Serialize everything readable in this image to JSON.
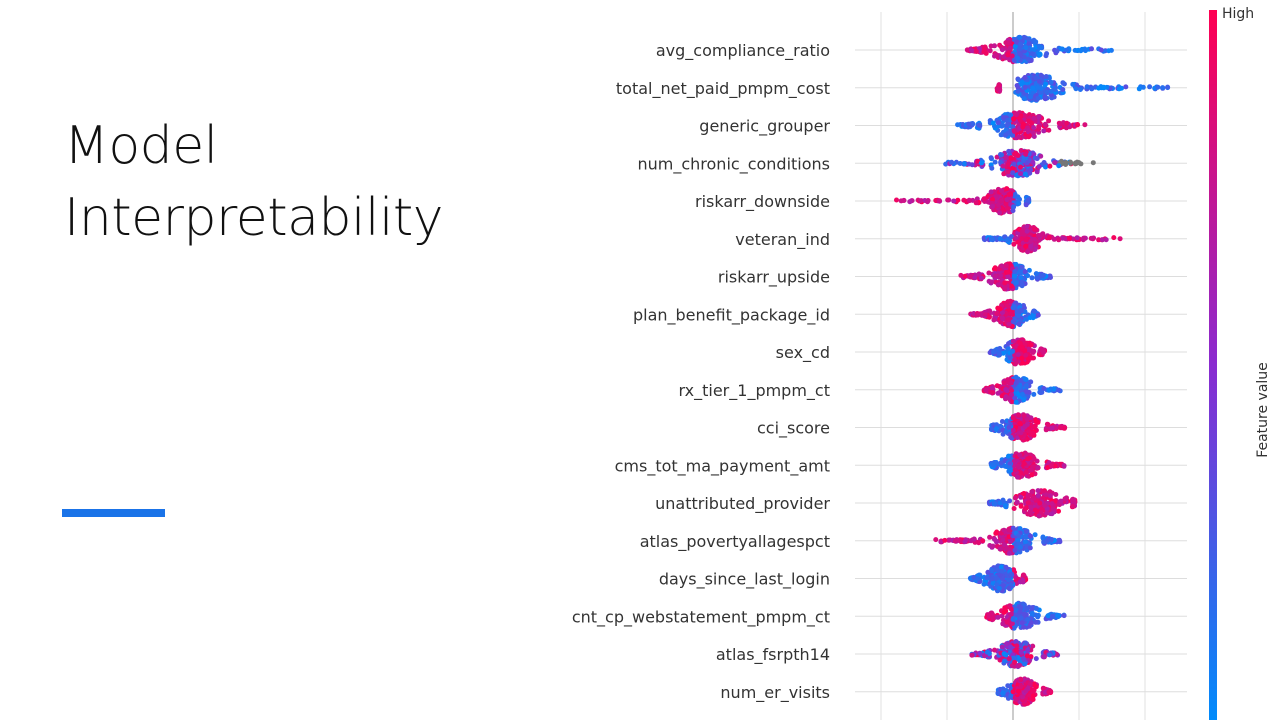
{
  "slide": {
    "title_line1": "Model",
    "title_line2": "Interpretability",
    "accent_color": "#1a73e8"
  },
  "chart_data": {
    "type": "scatter",
    "subtype": "shap-beeswarm-summary",
    "title": "",
    "xlabel": "",
    "ylabel": "",
    "zero_line": 0,
    "grid": true,
    "features": [
      {
        "name": "avg_compliance_ratio",
        "min": -0.7,
        "max": 1.6,
        "low_side": "right",
        "core": [
          -0.4,
          0.6
        ]
      },
      {
        "name": "total_net_paid_pmpm_cost",
        "min": -0.25,
        "max": 2.4,
        "low_side": "right",
        "core": [
          -0.2,
          0.9
        ]
      },
      {
        "name": "generic_grouper",
        "min": -0.85,
        "max": 1.15,
        "low_side": "left",
        "core": [
          -0.5,
          0.7
        ]
      },
      {
        "name": "num_chronic_conditions",
        "min": -1.05,
        "max": 1.3,
        "low_side": "mixed",
        "core": [
          -0.45,
          0.6
        ]
      },
      {
        "name": "riskarr_downside",
        "min": -2.05,
        "max": 0.25,
        "low_side": "right",
        "core": [
          -0.5,
          0.2
        ]
      },
      {
        "name": "veteran_ind",
        "min": -0.5,
        "max": 1.9,
        "low_side": "left",
        "core": [
          -0.05,
          0.5
        ]
      },
      {
        "name": "riskarr_upside",
        "min": -0.85,
        "max": 0.6,
        "low_side": "right",
        "core": [
          -0.45,
          0.35
        ]
      },
      {
        "name": "plan_benefit_package_id",
        "min": -0.65,
        "max": 0.4,
        "low_side": "right",
        "core": [
          -0.35,
          0.3
        ]
      },
      {
        "name": "sex_cd",
        "min": -0.35,
        "max": 0.5,
        "low_side": "left",
        "core": [
          -0.2,
          0.4
        ]
      },
      {
        "name": "rx_tier_1_pmpm_ct",
        "min": -0.45,
        "max": 0.75,
        "low_side": "right",
        "core": [
          -0.3,
          0.4
        ]
      },
      {
        "name": "cci_score",
        "min": -0.35,
        "max": 0.85,
        "low_side": "left",
        "core": [
          -0.25,
          0.5
        ]
      },
      {
        "name": "cms_tot_ma_payment_amt",
        "min": -0.35,
        "max": 0.85,
        "low_side": "left",
        "core": [
          -0.25,
          0.5
        ]
      },
      {
        "name": "unattributed_provider",
        "min": -0.4,
        "max": 0.95,
        "low_side": "left",
        "core": [
          -0.1,
          0.9
        ]
      },
      {
        "name": "atlas_povertyallagespct",
        "min": -1.3,
        "max": 0.75,
        "low_side": "right",
        "core": [
          -0.45,
          0.45
        ]
      },
      {
        "name": "days_since_last_login",
        "min": -0.65,
        "max": 0.2,
        "low_side": "left",
        "core": [
          -0.5,
          0.15
        ]
      },
      {
        "name": "cnt_cp_webstatement_pmpm_ct",
        "min": -0.4,
        "max": 0.85,
        "low_side": "right",
        "core": [
          -0.3,
          0.5
        ]
      },
      {
        "name": "atlas_fsrpth14",
        "min": -0.65,
        "max": 0.7,
        "low_side": "mixed",
        "core": [
          -0.35,
          0.45
        ]
      },
      {
        "name": "num_er_visits",
        "min": -0.25,
        "max": 0.6,
        "low_side": "left",
        "core": [
          -0.15,
          0.45
        ]
      },
      {
        "name": "",
        "min": -0.1,
        "max": 0.15,
        "low_side": "mixed",
        "core": [
          -0.05,
          0.1
        ],
        "partial": true
      }
    ],
    "colorbar": {
      "label": "Feature value",
      "high_label": "High",
      "low_color": "#008bfb",
      "high_color": "#ff0052"
    }
  }
}
